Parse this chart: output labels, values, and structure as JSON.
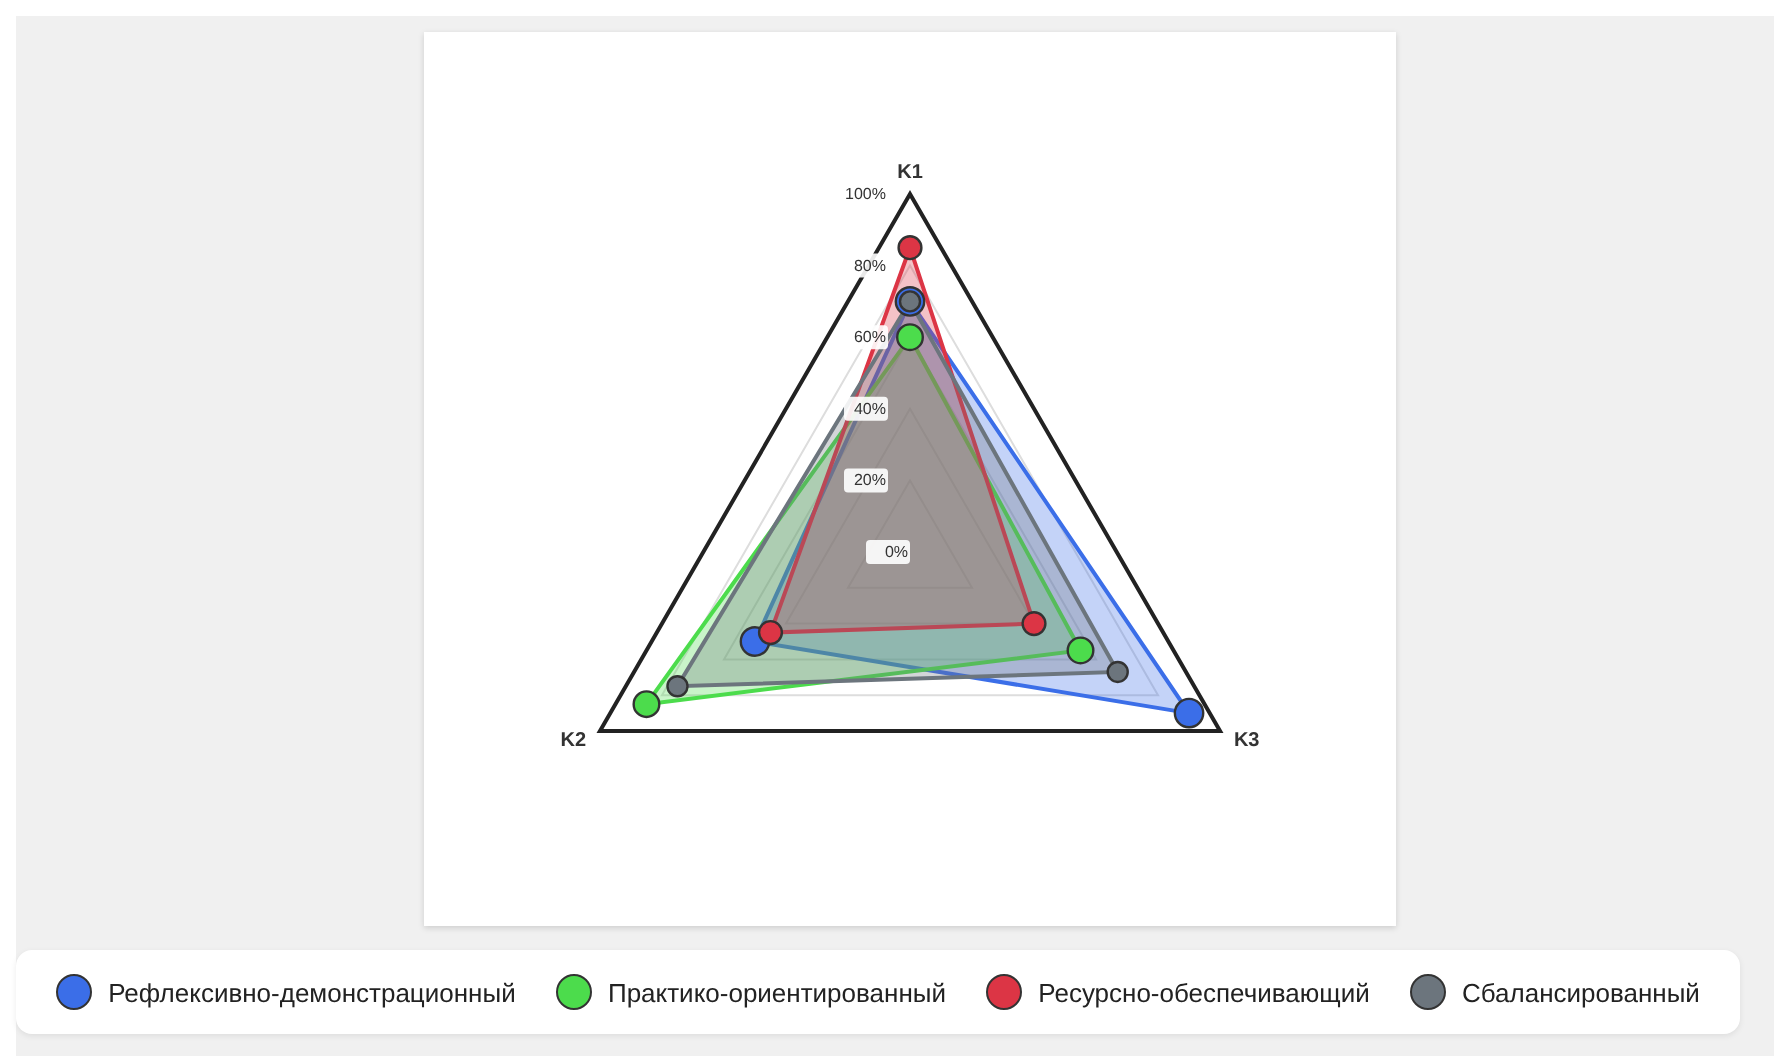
{
  "chart_data": {
    "type": "radar",
    "categories": [
      "K1",
      "K3",
      "K2"
    ],
    "series": [
      {
        "name": "Рефлексивно-демонстрационный",
        "color": "#3b6ee8",
        "values": [
          70,
          90,
          50
        ]
      },
      {
        "name": "Практико-ориентированный",
        "color": "#4cdc4c",
        "values": [
          60,
          55,
          85
        ]
      },
      {
        "name": "Ресурсно-обеспечивающий",
        "color": "#dc3545",
        "values": [
          85,
          40,
          45
        ]
      },
      {
        "name": "Сбалансированный",
        "color": "#6c757d",
        "values": [
          70,
          67,
          75
        ]
      }
    ],
    "ylim": [
      0,
      100
    ],
    "yticks": [
      {
        "value": 0,
        "label": "0%"
      },
      {
        "value": 20,
        "label": "20%"
      },
      {
        "value": 40,
        "label": "40%"
      },
      {
        "value": 60,
        "label": "60%"
      },
      {
        "value": 80,
        "label": "80%"
      },
      {
        "value": 100,
        "label": "100%"
      }
    ],
    "grid": true,
    "legend": "bottom",
    "marker": "circle"
  }
}
